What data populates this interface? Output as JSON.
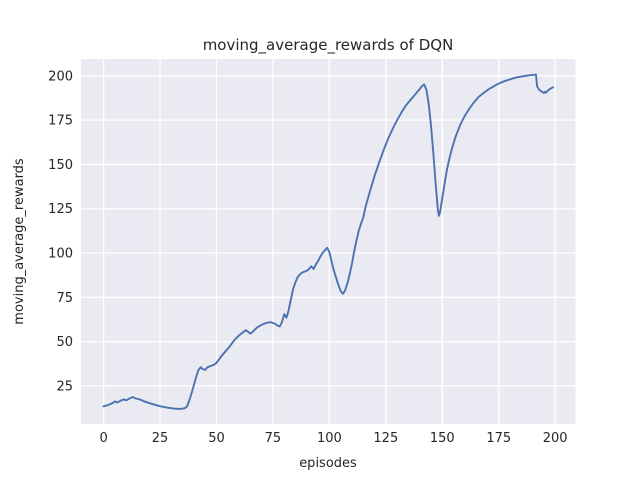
{
  "chart_data": {
    "type": "line",
    "title": "moving_average_rewards of DQN",
    "xlabel": "episodes",
    "ylabel": "moving_average_rewards",
    "xlim": [
      -10,
      209
    ],
    "ylim": [
      3.5,
      209.5
    ],
    "xticks": [
      0,
      25,
      50,
      75,
      100,
      125,
      150,
      175,
      200
    ],
    "yticks": [
      25,
      50,
      75,
      100,
      125,
      150,
      175,
      200
    ],
    "grid": true,
    "legend_position": "none",
    "style": {
      "plot_background": "#eaeaf2",
      "grid_color": "#ffffff",
      "line_color": "#4c72b0",
      "text_color": "#262626",
      "figure_background": "#ffffff"
    },
    "series": [
      {
        "name": "moving_average_rewards",
        "x": [
          0,
          2,
          4,
          5,
          6,
          8,
          9,
          10,
          12,
          13,
          14,
          16,
          18,
          20,
          22,
          24,
          26,
          28,
          30,
          32,
          34,
          36,
          37,
          38,
          39,
          40,
          41,
          42,
          43,
          44,
          45,
          46,
          47,
          48,
          49,
          50,
          52,
          54,
          56,
          58,
          60,
          62,
          63,
          64,
          65,
          66,
          68,
          70,
          72,
          74,
          75,
          76,
          77,
          78,
          79,
          80,
          81,
          82,
          83,
          84,
          85,
          86,
          87,
          88,
          89,
          90,
          91,
          92,
          93,
          94,
          95,
          96,
          97,
          98,
          99,
          100,
          101,
          102,
          103,
          104,
          105,
          106,
          107,
          108,
          109,
          110,
          111,
          112,
          113,
          114,
          115,
          116,
          118,
          120,
          122,
          124,
          126,
          128,
          130,
          132,
          134,
          136,
          138,
          140,
          141,
          142,
          143,
          144,
          145,
          146,
          147,
          148,
          148.5,
          149,
          150,
          151,
          152,
          153,
          154,
          155,
          156,
          158,
          160,
          162,
          164,
          166,
          168,
          170,
          172,
          174,
          176,
          178,
          180,
          182,
          184,
          186,
          188,
          190,
          191.5,
          192,
          193,
          194,
          195,
          195.5,
          196,
          197,
          198,
          199
        ],
        "y": [
          13.5,
          14.2,
          15.3,
          16.3,
          15.6,
          16.9,
          17.4,
          16.8,
          18.3,
          18.7,
          18.0,
          17.4,
          16.3,
          15.4,
          14.6,
          13.9,
          13.3,
          12.8,
          12.4,
          12.1,
          12.0,
          12.4,
          13.5,
          17.0,
          21.0,
          25.5,
          30.0,
          34.0,
          35.5,
          34.5,
          34.0,
          35.5,
          36.0,
          36.5,
          37.0,
          38.0,
          41.5,
          44.5,
          47.5,
          51.0,
          53.5,
          55.5,
          56.5,
          55.5,
          54.5,
          55.5,
          58.0,
          59.5,
          60.5,
          61.0,
          60.5,
          60.0,
          59.0,
          58.5,
          61.0,
          65.5,
          63.5,
          68.0,
          74.0,
          80.0,
          83.5,
          86.5,
          88.0,
          89.0,
          89.5,
          90.0,
          91.0,
          92.5,
          91.0,
          93.5,
          95.5,
          98.0,
          100.0,
          101.5,
          103.0,
          100.5,
          95.0,
          90.0,
          86.0,
          82.0,
          78.5,
          77.0,
          79.0,
          83.0,
          88.0,
          94.0,
          101.0,
          107.0,
          112.5,
          116.5,
          120.0,
          126.0,
          135.0,
          143.5,
          151.0,
          158.0,
          164.5,
          170.0,
          175.0,
          179.5,
          183.5,
          186.5,
          189.5,
          192.5,
          194.2,
          195.2,
          192.0,
          184.0,
          172.0,
          157.0,
          140.0,
          125.0,
          121.0,
          123.0,
          131.0,
          139.0,
          146.5,
          152.5,
          157.5,
          162.0,
          166.0,
          172.5,
          177.5,
          181.5,
          185.0,
          188.0,
          190.0,
          192.0,
          193.5,
          195.0,
          196.2,
          197.2,
          198.0,
          198.8,
          199.4,
          199.8,
          200.2,
          200.5,
          200.7,
          194.0,
          192.0,
          191.2,
          190.3,
          191.0,
          190.5,
          192.0,
          192.8,
          193.5
        ]
      }
    ]
  }
}
